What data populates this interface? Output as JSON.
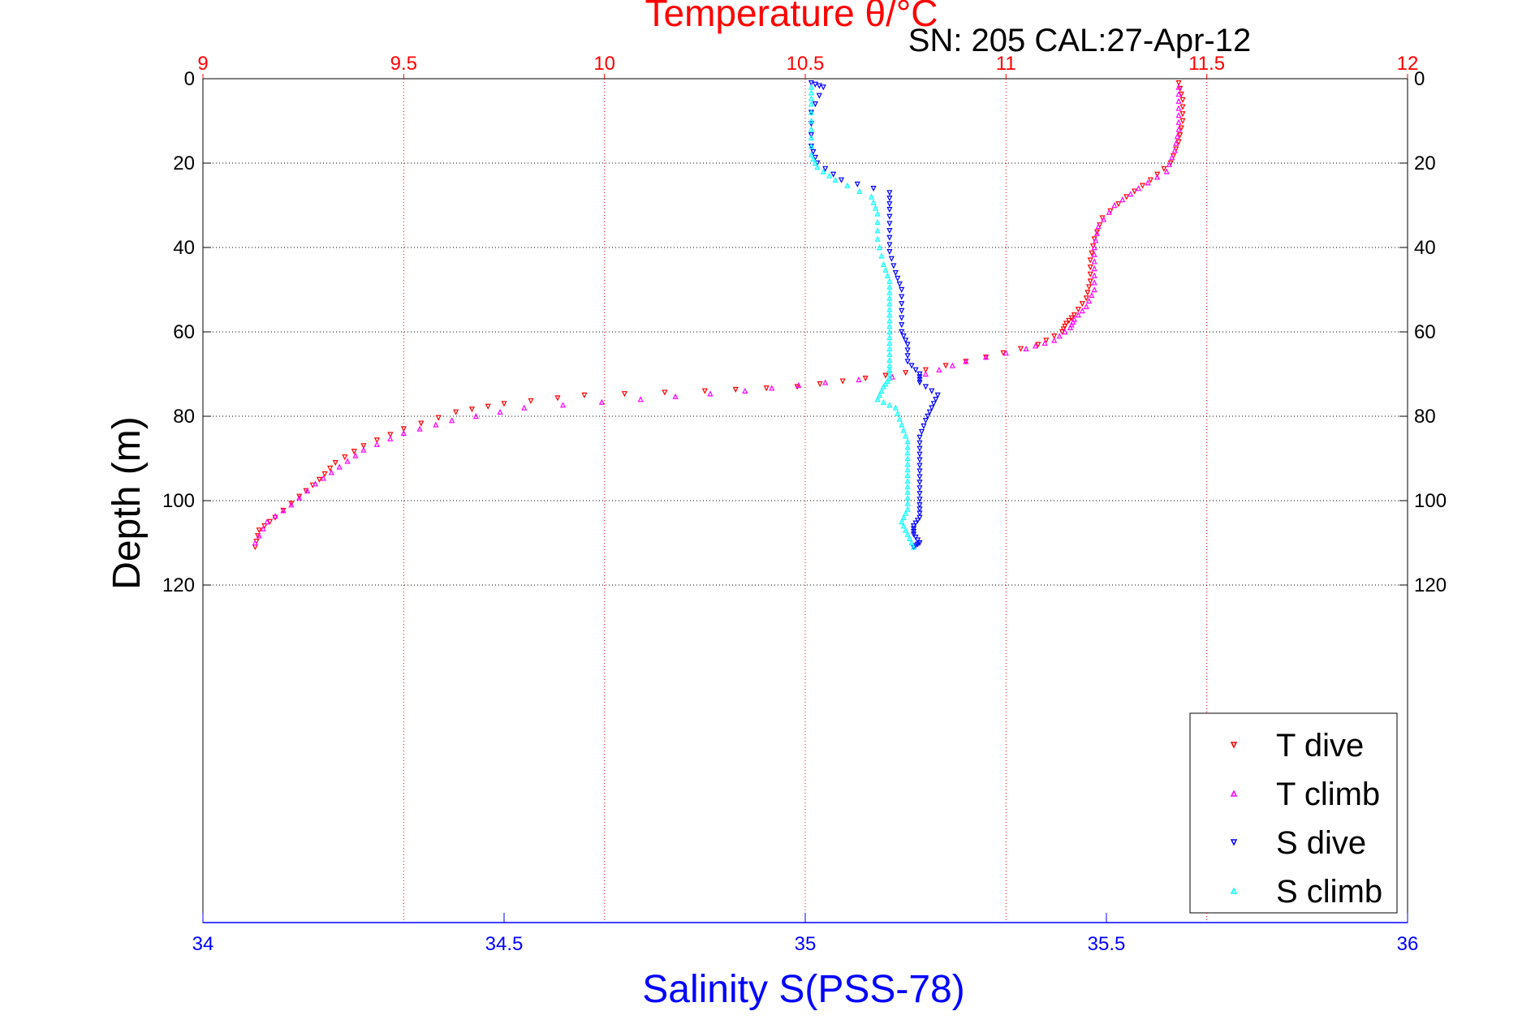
{
  "chart_data": {
    "type": "scatter",
    "title": "Temperature θ/°C",
    "subtitle": "SN: 205  CAL:27-Apr-12",
    "xlabel": "Salinity S(PSS-78)",
    "ylabel": "Depth (m)",
    "x_top_ticks": [
      "9",
      "9.5",
      "10",
      "10.5",
      "11",
      "11.5",
      "12"
    ],
    "x_bottom_ticks": [
      "34",
      "34.5",
      "35",
      "35.5",
      "36"
    ],
    "y_ticks": [
      "0",
      "20",
      "40",
      "60",
      "80",
      "100",
      "120"
    ],
    "xlim_top": [
      9,
      12
    ],
    "xlim_bottom": [
      34,
      36
    ],
    "ylim": [
      0,
      200
    ],
    "y_reversed": true,
    "grid": "top temperature ticks and depth ticks",
    "legend_position": "bottom-right",
    "series": [
      {
        "name": "T dive",
        "axis": "temperature",
        "color": "#ff0000",
        "marker": "triangle-down",
        "x": [
          11.43,
          11.44,
          11.44,
          11.43,
          11.41,
          11.36,
          11.3,
          11.24,
          11.22,
          11.21,
          11.21,
          11.2,
          11.17,
          11.15,
          11.14,
          11.08,
          10.95,
          10.8,
          10.65,
          10.48,
          10.25,
          9.95,
          9.75,
          9.63,
          9.5,
          9.4,
          9.33,
          9.29,
          9.24,
          9.18,
          9.14,
          9.13
        ],
        "y": [
          1,
          5,
          10,
          15,
          20,
          24,
          28,
          33,
          38,
          43,
          48,
          52,
          56,
          58,
          60,
          63,
          66,
          69,
          71,
          73,
          74,
          75,
          77,
          79,
          83,
          87,
          91,
          95,
          99,
          104,
          107,
          111
        ]
      },
      {
        "name": "T climb",
        "axis": "temperature",
        "color": "#ff00ff",
        "marker": "triangle-up",
        "x": [
          11.43,
          11.43,
          11.43,
          11.42,
          11.4,
          11.33,
          11.27,
          11.23,
          11.22,
          11.22,
          11.22,
          11.2,
          11.17,
          11.16,
          11.12,
          11.05,
          10.9,
          10.8,
          10.55,
          10.35,
          10.09,
          9.8,
          9.62,
          9.5,
          9.4,
          9.34,
          9.28,
          9.22,
          9.16,
          9.13
        ],
        "y": [
          2,
          7,
          12,
          17,
          22,
          26,
          30,
          35,
          40,
          45,
          50,
          54,
          57,
          59,
          62,
          64,
          67,
          70,
          72,
          74,
          76,
          78,
          81,
          84,
          88,
          92,
          96,
          101,
          105,
          110
        ]
      },
      {
        "name": "S dive",
        "axis": "salinity",
        "color": "#0000ff",
        "marker": "triangle-down",
        "x": [
          35.01,
          35.03,
          35.01,
          35.01,
          35.02,
          35.06,
          35.14,
          35.14,
          35.14,
          35.14,
          35.15,
          35.16,
          35.16,
          35.16,
          35.17,
          35.17,
          35.19,
          35.19,
          35.22,
          35.21,
          35.2,
          35.19,
          35.19,
          35.19,
          35.19,
          35.19,
          35.19,
          35.18,
          35.18,
          35.19,
          35.18
        ],
        "y": [
          1,
          2,
          8,
          16,
          20,
          24,
          27,
          31,
          36,
          41,
          46,
          50,
          55,
          60,
          63,
          67,
          70,
          72,
          75,
          78,
          81,
          85,
          89,
          93,
          97,
          101,
          104,
          106,
          108,
          110,
          111
        ]
      },
      {
        "name": "S climb",
        "axis": "salinity",
        "color": "#00ffff",
        "marker": "triangle-up",
        "x": [
          35.01,
          35.01,
          35.01,
          35.01,
          35.02,
          35.05,
          35.11,
          35.12,
          35.12,
          35.13,
          35.14,
          35.14,
          35.14,
          35.14,
          35.14,
          35.14,
          35.14,
          35.13,
          35.12,
          35.15,
          35.16,
          35.17,
          35.17,
          35.17,
          35.17,
          35.17,
          35.16,
          35.17,
          35.18
        ],
        "y": [
          2,
          6,
          12,
          18,
          21,
          24,
          28,
          32,
          38,
          44,
          48,
          52,
          56,
          60,
          64,
          68,
          71,
          73,
          76,
          78,
          82,
          86,
          90,
          94,
          98,
          102,
          105,
          108,
          111
        ]
      }
    ]
  }
}
